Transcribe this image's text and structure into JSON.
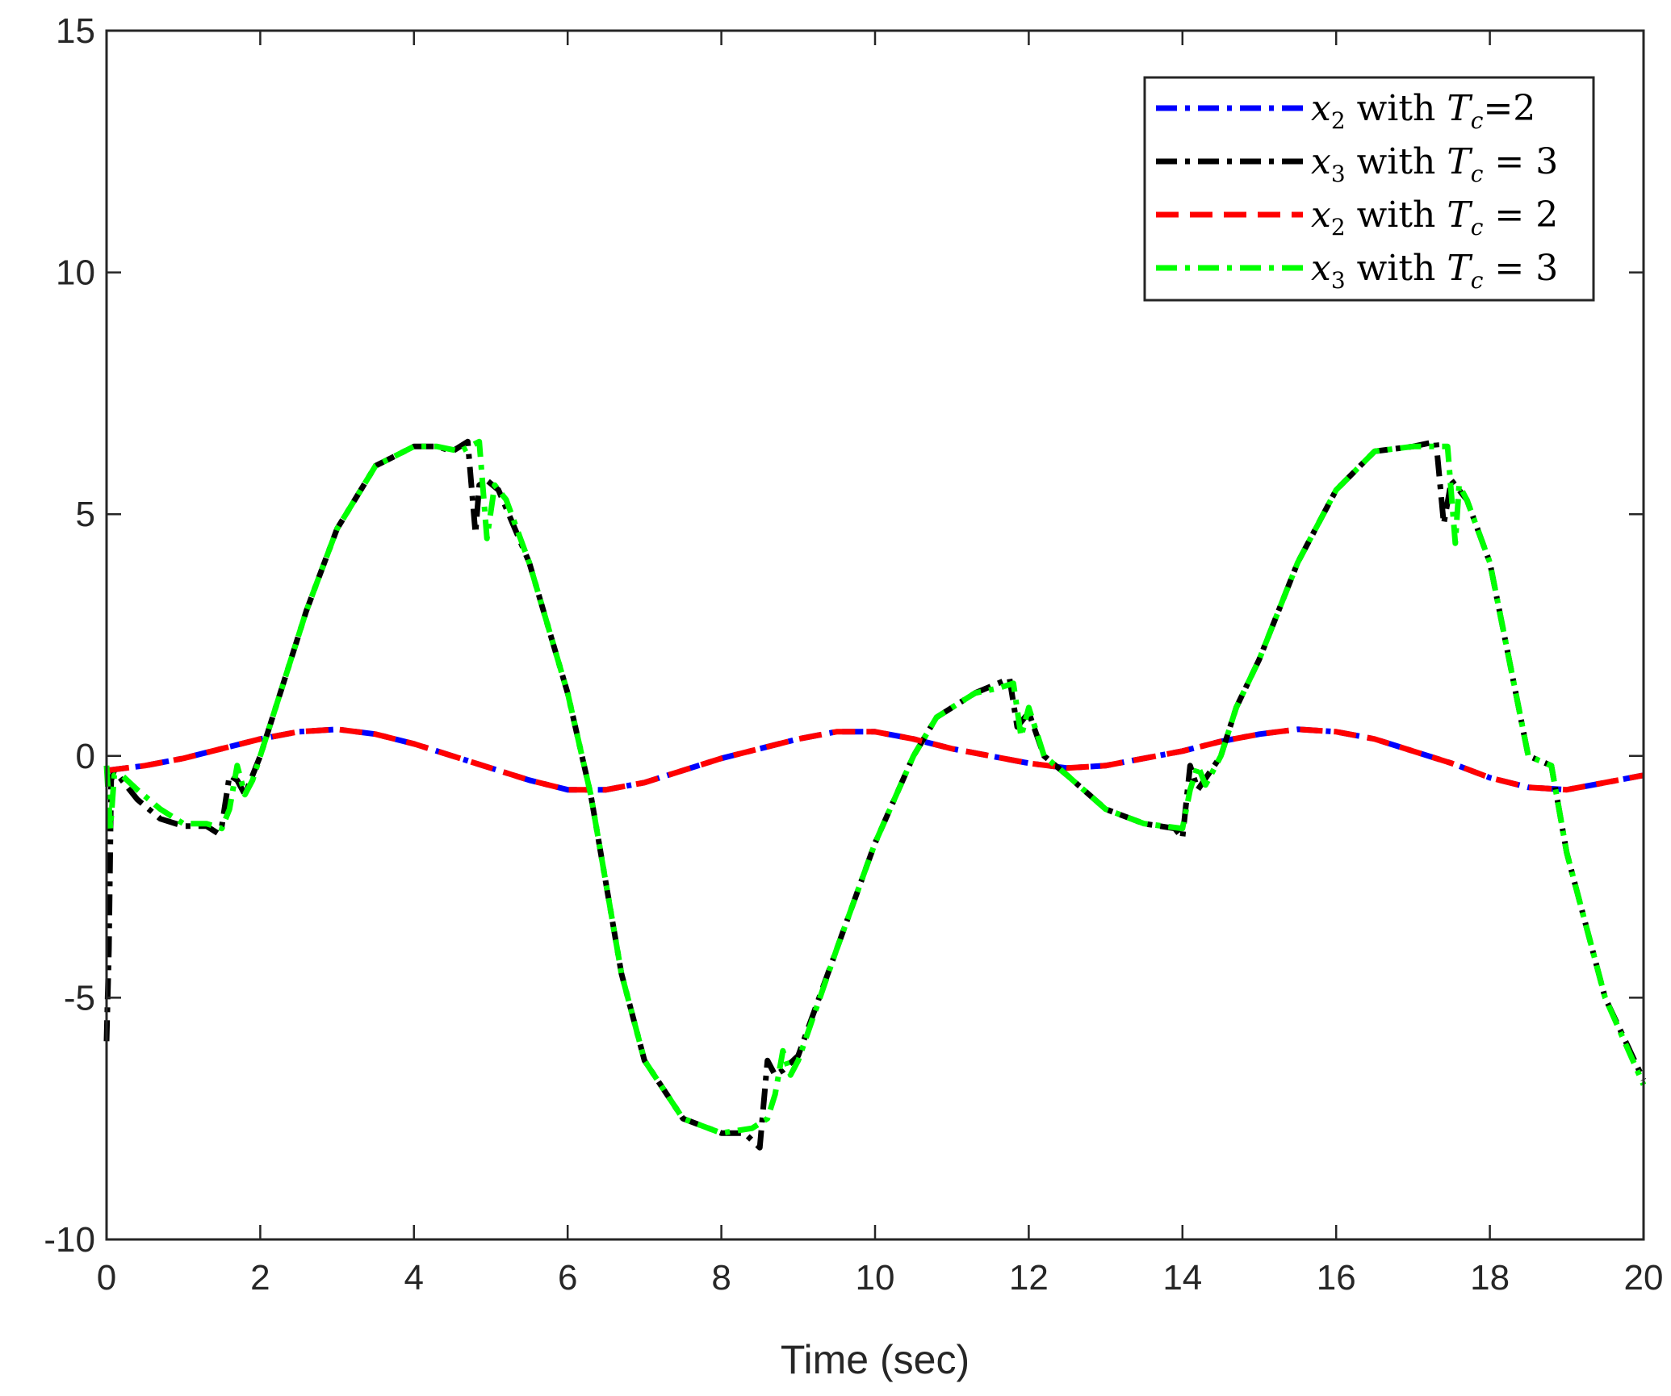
{
  "chart_data": {
    "type": "line",
    "title": "",
    "xlabel": "Time (sec)",
    "ylabel": "",
    "xlim": [
      0,
      20
    ],
    "ylim": [
      -10,
      15
    ],
    "xticks": [
      0,
      2,
      4,
      6,
      8,
      10,
      12,
      14,
      16,
      18,
      20
    ],
    "yticks": [
      -10,
      -5,
      0,
      5,
      10,
      15
    ],
    "xtick_labels": [
      "0",
      "2",
      "4",
      "6",
      "8",
      "10",
      "12",
      "14",
      "16",
      "18",
      "20"
    ],
    "ytick_labels": [
      "-10",
      "-5",
      "0",
      "5",
      "10",
      "15"
    ],
    "grid": false,
    "legend_position": "top-right",
    "series": [
      {
        "name": "x2 with Tc=2",
        "legend": {
          "var": "x",
          "sub": "2",
          "text": " with ",
          "var2": "T",
          "sub2": "c",
          "eq": "=2"
        },
        "color": "#0000ff",
        "dash": "dashdot",
        "x": [
          0,
          0.5,
          1,
          1.5,
          2,
          2.5,
          3,
          3.5,
          4,
          4.5,
          5,
          5.5,
          6,
          6.5,
          7,
          7.5,
          8,
          8.5,
          9,
          9.5,
          10,
          10.5,
          11,
          11.5,
          12,
          12.5,
          13,
          13.5,
          14,
          14.5,
          15,
          15.5,
          16,
          16.5,
          17,
          17.5,
          18,
          18.5,
          19,
          19.5,
          20
        ],
        "y": [
          -0.3,
          -0.2,
          -0.05,
          0.15,
          0.35,
          0.5,
          0.55,
          0.45,
          0.25,
          0.0,
          -0.25,
          -0.5,
          -0.7,
          -0.7,
          -0.55,
          -0.3,
          -0.05,
          0.15,
          0.35,
          0.5,
          0.5,
          0.35,
          0.15,
          0.0,
          -0.15,
          -0.25,
          -0.2,
          -0.05,
          0.1,
          0.3,
          0.45,
          0.55,
          0.5,
          0.35,
          0.1,
          -0.15,
          -0.45,
          -0.65,
          -0.7,
          -0.55,
          -0.4
        ]
      },
      {
        "name": "x3 with Tc = 3",
        "legend": {
          "var": "x",
          "sub": "3",
          "text": " with ",
          "var2": "T",
          "sub2": "c",
          "eq": " = 3"
        },
        "color": "#000000",
        "dash": "dashdot",
        "x": [
          0,
          0.03,
          0.06,
          0.1,
          0.2,
          0.4,
          0.7,
          1.0,
          1.3,
          1.45,
          1.5,
          1.6,
          1.7,
          1.8,
          2.0,
          2.3,
          2.6,
          3.0,
          3.5,
          4.0,
          4.3,
          4.5,
          4.7,
          4.8,
          4.85,
          4.95,
          5.1,
          5.5,
          6.0,
          6.3,
          6.7,
          7.0,
          7.5,
          8.0,
          8.3,
          8.5,
          8.6,
          8.7,
          8.8,
          9.0,
          9.5,
          10.0,
          10.5,
          10.8,
          11.0,
          11.3,
          11.6,
          11.75,
          11.85,
          12.0,
          12.2,
          12.5,
          13.0,
          13.5,
          13.9,
          14.0,
          14.1,
          14.2,
          14.5,
          14.7,
          15.0,
          15.5,
          16.0,
          16.5,
          17.0,
          17.3,
          17.4,
          17.5,
          17.7,
          18.0,
          18.5,
          18.8,
          19.0,
          19.5,
          20.0
        ],
        "y": [
          -5.9,
          -4.0,
          -0.5,
          -0.3,
          -0.5,
          -0.9,
          -1.3,
          -1.45,
          -1.45,
          -1.6,
          -1.45,
          -0.4,
          -0.5,
          -0.8,
          0.0,
          1.5,
          3.0,
          4.7,
          6.0,
          6.4,
          6.4,
          6.3,
          6.5,
          4.6,
          5.6,
          5.7,
          5.5,
          4.0,
          1.3,
          -0.8,
          -4.5,
          -6.3,
          -7.5,
          -7.8,
          -7.8,
          -8.1,
          -6.3,
          -6.6,
          -6.5,
          -6.2,
          -4.0,
          -1.8,
          0.0,
          0.8,
          1.0,
          1.3,
          1.5,
          1.6,
          0.6,
          0.9,
          0.0,
          -0.4,
          -1.1,
          -1.4,
          -1.5,
          -1.7,
          -0.2,
          -0.7,
          0.0,
          1.0,
          2.0,
          4.0,
          5.5,
          6.3,
          6.4,
          6.5,
          4.8,
          5.7,
          5.3,
          4.0,
          0.0,
          -0.2,
          -2.0,
          -5.0,
          -6.7
        ]
      },
      {
        "name": "x2 with Tc = 2",
        "legend": {
          "var": "x",
          "sub": "2",
          "text": " with ",
          "var2": "T",
          "sub2": "c",
          "eq": " = 2"
        },
        "color": "#ff0000",
        "dash": "dash",
        "x": [
          0,
          0.5,
          1,
          1.5,
          2,
          2.5,
          3,
          3.5,
          4,
          4.5,
          5,
          5.5,
          6,
          6.5,
          7,
          7.5,
          8,
          8.5,
          9,
          9.5,
          10,
          10.5,
          11,
          11.5,
          12,
          12.5,
          13,
          13.5,
          14,
          14.5,
          15,
          15.5,
          16,
          16.5,
          17,
          17.5,
          18,
          18.5,
          19,
          19.5,
          20
        ],
        "y": [
          -0.3,
          -0.2,
          -0.05,
          0.15,
          0.35,
          0.5,
          0.55,
          0.45,
          0.25,
          0.0,
          -0.25,
          -0.5,
          -0.7,
          -0.7,
          -0.55,
          -0.3,
          -0.05,
          0.15,
          0.35,
          0.5,
          0.5,
          0.35,
          0.15,
          0.0,
          -0.15,
          -0.25,
          -0.2,
          -0.05,
          0.1,
          0.3,
          0.45,
          0.55,
          0.5,
          0.35,
          0.1,
          -0.15,
          -0.45,
          -0.65,
          -0.7,
          -0.55,
          -0.4
        ]
      },
      {
        "name": "x3 with Tc = 3",
        "legend": {
          "var": "x",
          "sub": "3",
          "text": " with ",
          "var2": "T",
          "sub2": "c",
          "eq": " = 3"
        },
        "color": "#00ff00",
        "dash": "dashdot",
        "x": [
          0,
          0.05,
          0.1,
          0.2,
          0.4,
          0.7,
          1.0,
          1.3,
          1.5,
          1.6,
          1.7,
          1.8,
          1.9,
          2.0,
          2.3,
          2.6,
          3.0,
          3.5,
          4.0,
          4.3,
          4.6,
          4.85,
          4.95,
          5.05,
          5.2,
          5.5,
          6.0,
          6.3,
          6.7,
          7.0,
          7.5,
          8.0,
          8.4,
          8.6,
          8.7,
          8.8,
          8.9,
          9.0,
          9.5,
          10.0,
          10.5,
          10.8,
          11.0,
          11.3,
          11.6,
          11.8,
          11.9,
          12.0,
          12.2,
          12.5,
          13.0,
          13.5,
          14.0,
          14.1,
          14.2,
          14.3,
          14.5,
          14.7,
          15.0,
          15.5,
          16.0,
          16.5,
          17.0,
          17.3,
          17.45,
          17.55,
          17.6,
          17.7,
          18.0,
          18.5,
          18.8,
          19.0,
          19.5,
          20.0
        ],
        "y": [
          -0.2,
          -1.5,
          -0.4,
          -0.4,
          -0.7,
          -1.1,
          -1.4,
          -1.4,
          -1.5,
          -1.1,
          -0.2,
          -0.8,
          -0.5,
          0.0,
          1.5,
          3.0,
          4.7,
          6.0,
          6.4,
          6.4,
          6.3,
          6.5,
          4.5,
          5.6,
          5.3,
          4.0,
          1.3,
          -0.8,
          -4.5,
          -6.3,
          -7.5,
          -7.8,
          -7.7,
          -7.5,
          -7.0,
          -6.1,
          -6.6,
          -6.3,
          -4.0,
          -1.8,
          0.0,
          0.8,
          1.0,
          1.3,
          1.4,
          1.5,
          0.4,
          1.0,
          0.0,
          -0.4,
          -1.1,
          -1.4,
          -1.5,
          -0.7,
          -0.2,
          -0.6,
          0.0,
          1.0,
          2.0,
          4.0,
          5.5,
          6.3,
          6.4,
          6.4,
          6.4,
          4.4,
          5.6,
          5.3,
          4.0,
          0.0,
          -0.2,
          -2.0,
          -5.0,
          -6.8
        ]
      }
    ]
  }
}
